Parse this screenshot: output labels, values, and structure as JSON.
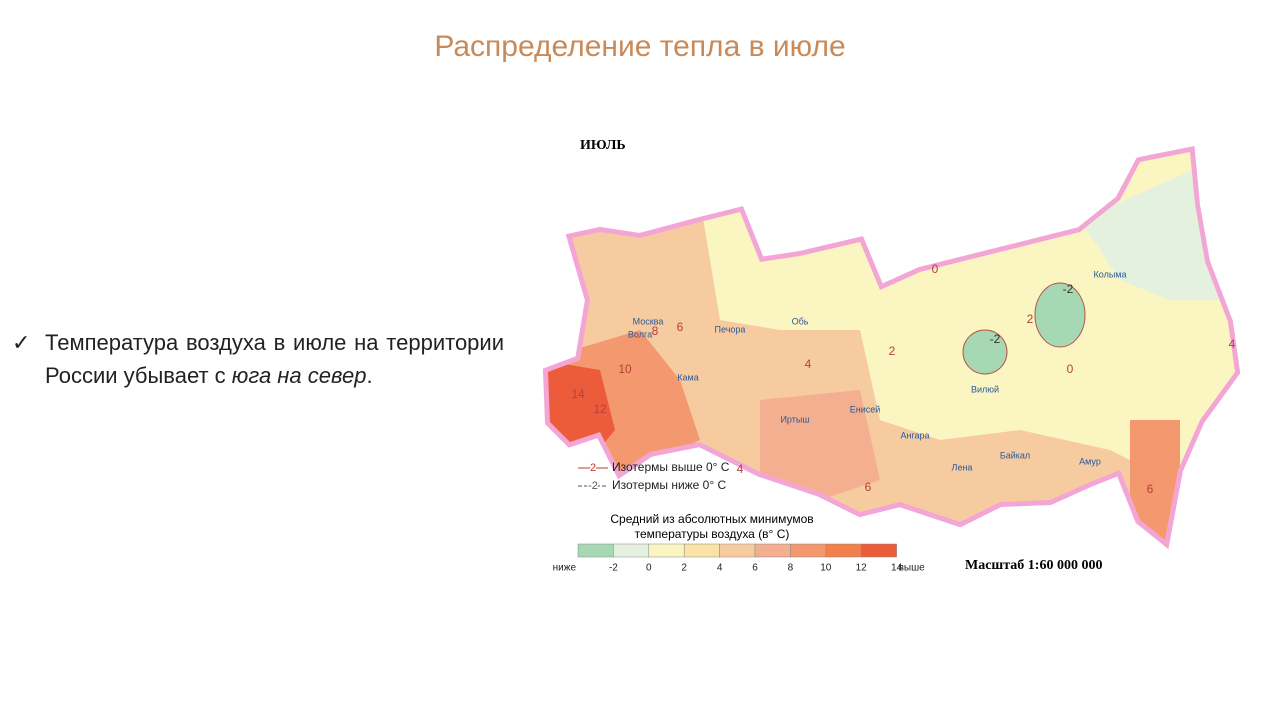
{
  "slide": {
    "title": "Распределение тепла в июле",
    "bullet": {
      "marker": "✓",
      "text": "Температура воздуха в июле на территории России убывает с",
      "emphasis": "юга на север",
      "end": "."
    }
  },
  "map": {
    "heading": "ИЮЛЬ",
    "scale": "Масштаб 1:60 000 000",
    "places": [
      "Москва",
      "Волга",
      "Кама",
      "Печора",
      "Обь",
      "Иртыш",
      "Енисей",
      "Ангара",
      "Байкал",
      "Лена",
      "Амур",
      "Колыма",
      "Вилюй"
    ],
    "isotherm_labels": [
      "14",
      "12",
      "10",
      "8",
      "6",
      "4",
      "4",
      "2",
      "2",
      "0",
      "0",
      "-2",
      "-2",
      "6",
      "6",
      "4"
    ],
    "isolines": [
      {
        "sample": "2",
        "text": "Изотермы выше 0° С"
      },
      {
        "sample": "-2",
        "text": "Изотермы ниже 0° С"
      }
    ],
    "legend_title": "Средний из абсолютных минимумов температуры воздуха (в° С)",
    "scale_labels": [
      "ниже",
      "-2",
      "0",
      "2",
      "4",
      "6",
      "8",
      "10",
      "12",
      "14",
      "выше"
    ],
    "scale_colors": [
      "#a6d8b4",
      "#e4f1df",
      "#fbf5c2",
      "#f9e3a6",
      "#f7cba0",
      "#f4ae90",
      "#f3986f",
      "#f27f4c",
      "#ec5c3b"
    ]
  }
}
